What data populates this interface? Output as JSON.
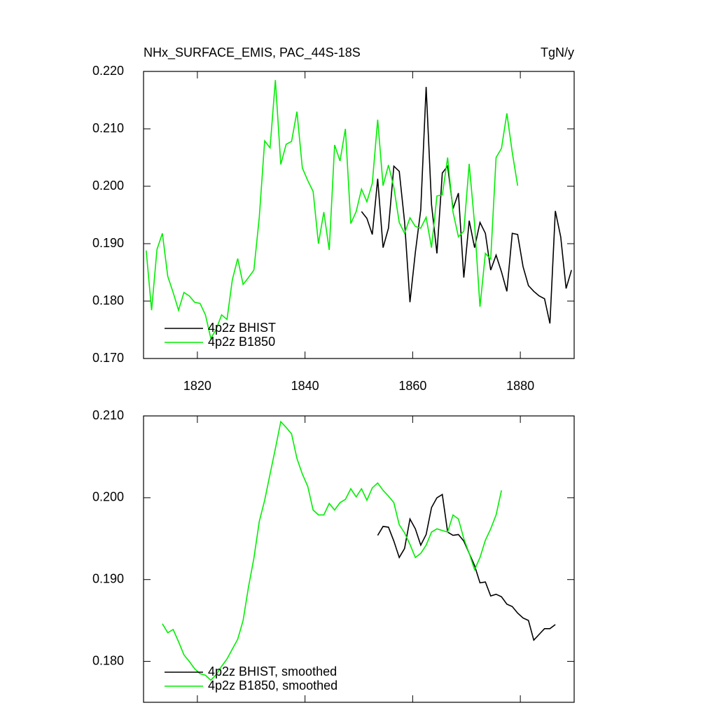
{
  "chart_data": [
    {
      "type": "line",
      "title": "NHx_SURFACE_EMIS, PAC_44S-18S",
      "right_title": "TgN/y",
      "xlim": [
        1810,
        1890
      ],
      "xticks": [
        1820,
        1840,
        1860,
        1880
      ],
      "show_xtick_labels": true,
      "ylim": [
        0.17,
        0.22
      ],
      "yticks": [
        {
          "value": 0.17,
          "label": "0.170"
        },
        {
          "value": 0.18,
          "label": "0.180"
        },
        {
          "value": 0.19,
          "label": "0.190"
        },
        {
          "value": 0.2,
          "label": "0.200"
        },
        {
          "value": 0.21,
          "label": "0.210"
        },
        {
          "value": 0.22,
          "label": "0.220"
        }
      ],
      "legend": "lower left",
      "series": [
        {
          "name": "4p2z BHIST",
          "color": "#000000",
          "x": [
            1850.5,
            1851.5,
            1852.5,
            1853.5,
            1854.5,
            1855.5,
            1856.5,
            1857.5,
            1858.5,
            1859.5,
            1860.5,
            1861.5,
            1862.5,
            1863.5,
            1864.5,
            1865.5,
            1866.5,
            1867.5,
            1868.5,
            1869.5,
            1870.5,
            1871.5,
            1872.5,
            1873.5,
            1874.5,
            1875.5,
            1876.5,
            1877.5,
            1878.5,
            1879.5,
            1880.5,
            1881.5,
            1882.5,
            1883.5,
            1884.5,
            1885.5,
            1886.5,
            1887.5,
            1888.5,
            1889.5
          ],
          "values": [
            0.1956,
            0.1944,
            0.1916,
            0.2013,
            0.1893,
            0.1927,
            0.2035,
            0.2026,
            0.1938,
            0.1798,
            0.1885,
            0.1959,
            0.2173,
            0.1968,
            0.1883,
            0.2023,
            0.2035,
            0.1961,
            0.1988,
            0.1841,
            0.194,
            0.1893,
            0.1937,
            0.1918,
            0.1854,
            0.188,
            0.1851,
            0.1817,
            0.1918,
            0.1916,
            0.186,
            0.1827,
            0.1817,
            0.1809,
            0.1804,
            0.1761,
            0.1957,
            0.1912,
            0.1822,
            0.1854
          ]
        },
        {
          "name": "4p2z B1850",
          "color": "#00ee00",
          "x": [
            1810.5,
            1811.5,
            1812.5,
            1813.5,
            1814.5,
            1815.5,
            1816.5,
            1817.5,
            1818.5,
            1819.5,
            1820.5,
            1821.5,
            1822.5,
            1823.5,
            1824.5,
            1825.5,
            1826.5,
            1827.5,
            1828.5,
            1829.5,
            1830.5,
            1831.5,
            1832.5,
            1833.5,
            1834.5,
            1835.5,
            1836.5,
            1837.5,
            1838.5,
            1839.5,
            1840.5,
            1841.5,
            1842.5,
            1843.5,
            1844.5,
            1845.5,
            1846.5,
            1847.5,
            1848.5,
            1849.5,
            1850.5,
            1851.5,
            1852.5,
            1853.5,
            1854.5,
            1855.5,
            1856.5,
            1857.5,
            1858.5,
            1859.5,
            1860.5,
            1861.5,
            1862.5,
            1863.5,
            1864.5,
            1865.5,
            1866.5,
            1867.5,
            1868.5,
            1869.5,
            1870.5,
            1871.5,
            1872.5,
            1873.5,
            1874.5,
            1875.5,
            1876.5,
            1877.5,
            1878.5,
            1879.5
          ],
          "values": [
            0.1888,
            0.1784,
            0.189,
            0.1918,
            0.1843,
            0.1815,
            0.1784,
            0.1815,
            0.1809,
            0.1798,
            0.1796,
            0.1776,
            0.1735,
            0.1751,
            0.1776,
            0.1768,
            0.1837,
            0.1874,
            0.1829,
            0.1841,
            0.1854,
            0.1946,
            0.2079,
            0.2067,
            0.2185,
            0.2038,
            0.2073,
            0.2078,
            0.213,
            0.2032,
            0.201,
            0.1991,
            0.19,
            0.1955,
            0.1889,
            0.2072,
            0.2044,
            0.21,
            0.1935,
            0.1956,
            0.1995,
            0.1973,
            0.2005,
            0.2116,
            0.2001,
            0.2037,
            0.1998,
            0.1937,
            0.1918,
            0.1945,
            0.193,
            0.1927,
            0.1946,
            0.1893,
            0.1983,
            0.1985,
            0.205,
            0.1955,
            0.1912,
            0.1922,
            0.2039,
            0.1934,
            0.179,
            0.1883,
            0.1873,
            0.205,
            0.2066,
            0.2127,
            0.2059,
            0.2001
          ]
        }
      ]
    },
    {
      "type": "line",
      "xlim": [
        1810,
        1890
      ],
      "xticks": [
        1820,
        1840,
        1860,
        1880
      ],
      "show_xtick_labels": false,
      "ylim": [
        0.175,
        0.21
      ],
      "yticks": [
        {
          "value": 0.18,
          "label": "0.180"
        },
        {
          "value": 0.19,
          "label": "0.190"
        },
        {
          "value": 0.2,
          "label": "0.200"
        },
        {
          "value": 0.21,
          "label": "0.210"
        }
      ],
      "legend": "lower left",
      "series": [
        {
          "name": "4p2z BHIST, smoothed",
          "color": "#000000",
          "x": [
            1853.5,
            1854.5,
            1855.5,
            1856.5,
            1857.5,
            1858.5,
            1859.5,
            1860.5,
            1861.5,
            1862.5,
            1863.5,
            1864.5,
            1865.5,
            1866.5,
            1867.5,
            1868.5,
            1869.5,
            1870.5,
            1871.5,
            1872.5,
            1873.5,
            1874.5,
            1875.5,
            1876.5,
            1877.5,
            1878.5,
            1879.5,
            1880.5,
            1881.5,
            1882.5,
            1883.5,
            1884.5,
            1885.5,
            1886.5
          ],
          "values": [
            0.1954,
            0.1965,
            0.1964,
            0.1947,
            0.1927,
            0.1938,
            0.1974,
            0.1962,
            0.1942,
            0.1955,
            0.1988,
            0.2,
            0.2004,
            0.1958,
            0.1954,
            0.1955,
            0.1947,
            0.1932,
            0.1917,
            0.1896,
            0.1897,
            0.188,
            0.1882,
            0.1879,
            0.187,
            0.1867,
            0.1859,
            0.1853,
            0.185,
            0.1826,
            0.1833,
            0.184,
            0.184,
            0.1845
          ]
        },
        {
          "name": "4p2z B1850, smoothed",
          "color": "#00ee00",
          "x": [
            1813.5,
            1814.5,
            1815.5,
            1816.5,
            1817.5,
            1818.5,
            1819.5,
            1820.5,
            1821.5,
            1822.5,
            1823.5,
            1824.5,
            1825.5,
            1826.5,
            1827.5,
            1828.5,
            1829.5,
            1830.5,
            1831.5,
            1832.5,
            1833.5,
            1834.5,
            1835.5,
            1836.5,
            1837.5,
            1838.5,
            1839.5,
            1840.5,
            1841.5,
            1842.5,
            1843.5,
            1844.5,
            1845.5,
            1846.5,
            1847.5,
            1848.5,
            1849.5,
            1850.5,
            1851.5,
            1852.5,
            1853.5,
            1854.5,
            1855.5,
            1856.5,
            1857.5,
            1858.5,
            1859.5,
            1860.5,
            1861.5,
            1862.5,
            1863.5,
            1864.5,
            1865.5,
            1866.5,
            1867.5,
            1868.5,
            1869.5,
            1870.5,
            1871.5,
            1872.5,
            1873.5,
            1874.5,
            1875.5,
            1876.5
          ],
          "values": [
            0.1846,
            0.1835,
            0.1839,
            0.1824,
            0.1808,
            0.18,
            0.1791,
            0.1785,
            0.1783,
            0.1777,
            0.1784,
            0.1794,
            0.1803,
            0.1815,
            0.1827,
            0.185,
            0.1891,
            0.1926,
            0.1971,
            0.1997,
            0.2029,
            0.206,
            0.2093,
            0.2086,
            0.2078,
            0.2048,
            0.2029,
            0.2014,
            0.1985,
            0.1979,
            0.1979,
            0.1993,
            0.1985,
            0.1994,
            0.1998,
            0.2011,
            0.2001,
            0.2011,
            0.1997,
            0.2012,
            0.2018,
            0.2009,
            0.2002,
            0.1994,
            0.1967,
            0.1957,
            0.1943,
            0.1927,
            0.1932,
            0.1942,
            0.1958,
            0.1962,
            0.196,
            0.1958,
            0.1979,
            0.1974,
            0.195,
            0.1932,
            0.1912,
            0.1927,
            0.1948,
            0.1962,
            0.1979,
            0.2009
          ]
        }
      ]
    }
  ]
}
